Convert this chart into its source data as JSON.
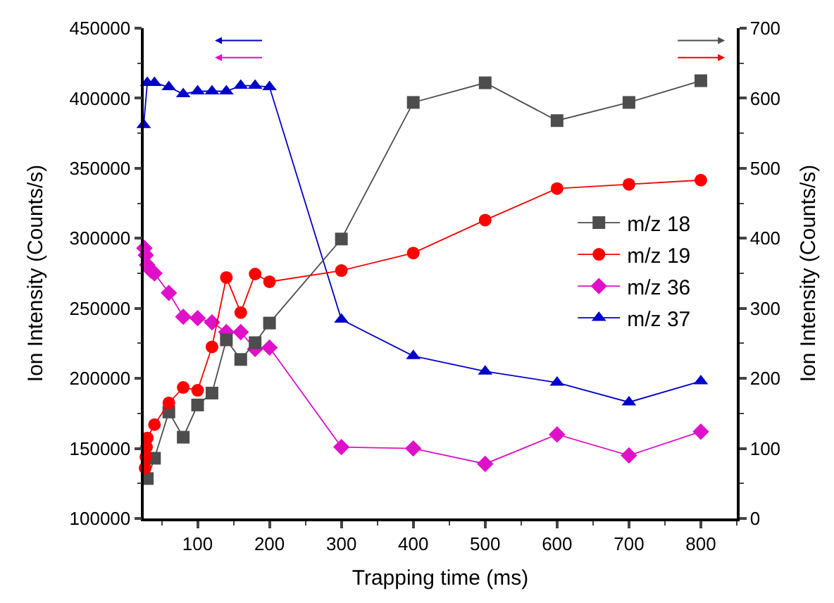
{
  "chart_data": {
    "type": "line",
    "xlabel": "Trapping time (ms)",
    "ylabel": "Ion Intensity (Counts/s)",
    "y2label": "Ion Intensity (Counts/s)",
    "xlim": [
      25,
      850
    ],
    "xticks": [
      100,
      200,
      300,
      400,
      500,
      600,
      700,
      800
    ],
    "ylim": [
      100000,
      450000
    ],
    "yticks": [
      100000,
      150000,
      200000,
      250000,
      300000,
      350000,
      400000,
      450000
    ],
    "y2lim": [
      0,
      700
    ],
    "y2ticks": [
      0,
      100,
      200,
      300,
      400,
      500,
      600,
      700
    ],
    "legend": "right",
    "line_style": "solid",
    "series": [
      {
        "name": "m/z 18",
        "color": "#4d4d4d",
        "axis": "y2",
        "marker": "square",
        "x": [
          30,
          40,
          60,
          80,
          100,
          120,
          140,
          160,
          180,
          200,
          300,
          400,
          500,
          600,
          700,
          800
        ],
        "values": [
          57,
          86,
          152,
          116,
          162,
          179,
          255,
          227,
          251,
          279,
          399,
          594,
          622,
          568,
          594,
          625
        ]
      },
      {
        "name": "m/z 19",
        "color": "#ff0000",
        "axis": "y2",
        "marker": "circle",
        "x": [
          27,
          28,
          29,
          30,
          40,
          60,
          80,
          100,
          120,
          140,
          160,
          180,
          200,
          300,
          400,
          500,
          600,
          700,
          800
        ],
        "values": [
          72,
          88,
          102,
          115,
          134,
          165,
          187,
          183,
          245,
          344,
          294,
          349,
          338,
          354,
          379,
          426,
          471,
          477,
          483
        ]
      },
      {
        "name": "m/z 36",
        "color": "#e010c8",
        "axis": "y",
        "marker": "diamond",
        "x": [
          26,
          28,
          30,
          35,
          40,
          60,
          80,
          100,
          120,
          140,
          160,
          180,
          200,
          300,
          400,
          500,
          600,
          700,
          800
        ],
        "values": [
          293000,
          288000,
          281000,
          277000,
          275000,
          261000,
          244000,
          243000,
          240000,
          233000,
          233000,
          221000,
          222000,
          151000,
          150000,
          139000,
          160000,
          145000,
          162000
        ]
      },
      {
        "name": "m/z 37",
        "color": "#0000cc",
        "axis": "y",
        "marker": "triangle",
        "x": [
          25,
          30,
          40,
          60,
          80,
          100,
          120,
          140,
          160,
          180,
          200,
          300,
          400,
          500,
          600,
          700,
          800
        ],
        "values": [
          381000,
          411000,
          411000,
          408000,
          403000,
          405000,
          405000,
          405000,
          409000,
          409000,
          408000,
          242000,
          216000,
          205000,
          197000,
          183000,
          198000
        ]
      }
    ]
  }
}
